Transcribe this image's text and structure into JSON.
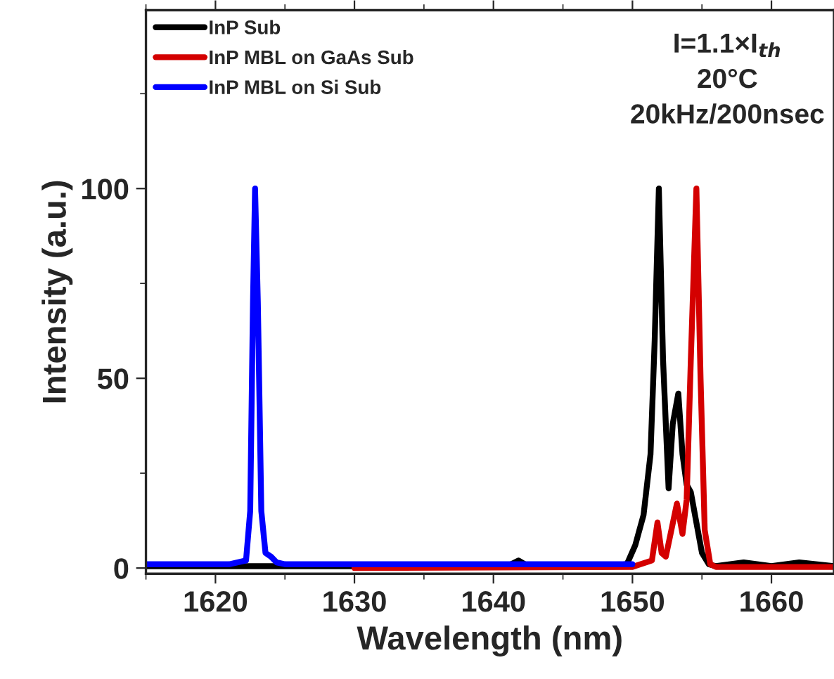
{
  "chart_data": {
    "type": "line",
    "xlabel": "Wavelength (nm)",
    "ylabel": "Intensity (a.u.)",
    "xlim": [
      1615,
      1664.5
    ],
    "ylim": [
      -1.5,
      147
    ],
    "xticks": [
      1620,
      1630,
      1640,
      1650,
      1660
    ],
    "yticks": [
      0,
      50,
      100
    ],
    "legend": "top left",
    "grid": false,
    "annotations": [
      "I=1.1×I$_{th}$\n20°C\n20kHz/200nsec"
    ],
    "series": [
      {
        "name": "InP Sub",
        "color": "#000000",
        "x": [
          1615,
          1630,
          1641,
          1641.8,
          1642.5,
          1648,
          1649.6,
          1650.2,
          1650.8,
          1651.3,
          1651.6,
          1651.9,
          1652.2,
          1652.6,
          1652.9,
          1653.3,
          1653.6,
          1653.9,
          1654.2,
          1654.6,
          1655,
          1655.5,
          1656,
          1658,
          1660,
          1662,
          1664.5
        ],
        "values": [
          0.5,
          0.5,
          0.5,
          2,
          0.5,
          0.5,
          1,
          6,
          14,
          30,
          60,
          100,
          55,
          21,
          38,
          46,
          30,
          22,
          20,
          12,
          4,
          1,
          0.5,
          1.5,
          0.5,
          1.5,
          0.5
        ]
      },
      {
        "name": "InP MBL on GaAs Sub",
        "color": "#d40000",
        "x": [
          1630,
          1650,
          1651.4,
          1651.8,
          1652.1,
          1652.4,
          1652.8,
          1653.2,
          1653.6,
          1653.9,
          1654.2,
          1654.6,
          1654.9,
          1655.2,
          1655.6,
          1656,
          1664.5
        ],
        "values": [
          0,
          0.3,
          2,
          12,
          4,
          3,
          10,
          17,
          9,
          18,
          55,
          100,
          50,
          10,
          1,
          0.3,
          0.3
        ]
      },
      {
        "name": "InP MBL on Si Sub",
        "color": "#0000ff",
        "x": [
          1615,
          1621,
          1622.2,
          1622.5,
          1622.7,
          1622.85,
          1623.05,
          1623.3,
          1623.6,
          1624,
          1624.4,
          1625,
          1635,
          1645,
          1650
        ],
        "values": [
          1,
          1,
          2,
          15,
          70,
          100,
          70,
          15,
          4,
          3,
          1.5,
          1,
          1,
          1,
          1
        ]
      }
    ]
  }
}
